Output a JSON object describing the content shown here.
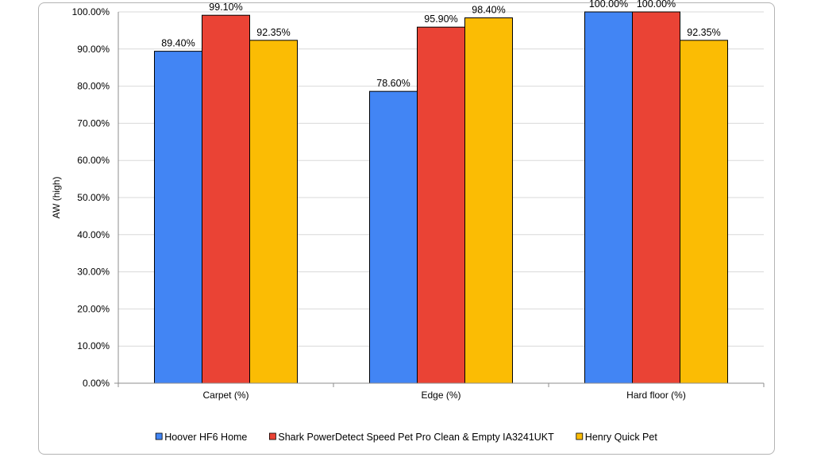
{
  "chart_data": {
    "type": "bar",
    "title": "",
    "xlabel": "",
    "ylabel": "AW (high)",
    "ylim": [
      0,
      100
    ],
    "ytick_step": 10,
    "ytick_suffix": ".00%",
    "grid": true,
    "legend_position": "bottom",
    "categories": [
      "Carpet (%)",
      "Edge (%)",
      "Hard floor (%)"
    ],
    "series": [
      {
        "name": "Hoover HF6 Home",
        "color": "#4285f4",
        "values": [
          89.4,
          78.6,
          100.0
        ],
        "labels": [
          "89.40%",
          "78.60%",
          "100.00%"
        ]
      },
      {
        "name": "Shark PowerDetect Speed Pet Pro Clean & Empty IA3241UKT",
        "color": "#ea4335",
        "values": [
          99.1,
          95.9,
          100.0
        ],
        "labels": [
          "99.10%",
          "95.90%",
          "100.00%"
        ]
      },
      {
        "name": "Henry Quick Pet",
        "color": "#fbbc04",
        "values": [
          92.35,
          98.4,
          92.35
        ],
        "labels": [
          "92.35%",
          "98.40%",
          "92.35%"
        ]
      }
    ]
  }
}
